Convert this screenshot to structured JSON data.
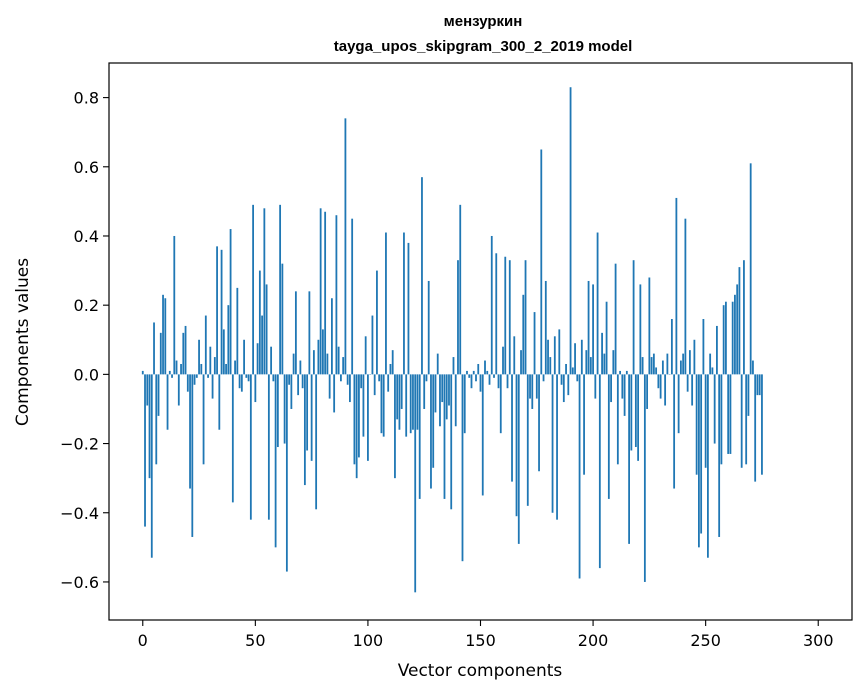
{
  "chart_data": {
    "type": "bar",
    "title": "мензуркин",
    "subtitle": "tayga_upos_skipgram_300_2_2019 model",
    "xlabel": "Vector components",
    "ylabel": "Components values",
    "xlim": [
      -15,
      315
    ],
    "ylim": [
      -0.71,
      0.9
    ],
    "xticks": [
      0,
      50,
      100,
      150,
      200,
      250,
      300
    ],
    "yticks": [
      -0.6,
      -0.4,
      -0.2,
      0.0,
      0.2,
      0.4,
      0.6,
      0.8
    ],
    "ytick_labels": [
      "−0.6",
      "−0.4",
      "−0.2",
      "0.0",
      "0.2",
      "0.4",
      "0.6",
      "0.8"
    ],
    "grid": false,
    "bar_color": "#1f77b4",
    "values": [
      0.01,
      -0.44,
      -0.09,
      -0.3,
      -0.53,
      0.15,
      -0.26,
      -0.12,
      0.12,
      0.23,
      0.22,
      -0.16,
      0.01,
      -0.01,
      0.4,
      0.04,
      -0.09,
      0.03,
      0.12,
      0.14,
      -0.05,
      -0.33,
      -0.47,
      -0.03,
      -0.01,
      0.1,
      0.03,
      -0.26,
      0.17,
      -0.01,
      0.08,
      -0.07,
      0.05,
      0.37,
      -0.16,
      0.36,
      0.13,
      0.03,
      0.2,
      0.42,
      -0.37,
      0.04,
      0.25,
      -0.04,
      -0.05,
      0.1,
      -0.01,
      -0.02,
      -0.42,
      0.49,
      -0.08,
      0.09,
      0.3,
      0.17,
      0.48,
      0.26,
      -0.42,
      0.08,
      -0.02,
      -0.5,
      -0.21,
      0.49,
      0.32,
      -0.2,
      -0.57,
      -0.03,
      -0.1,
      0.06,
      0.24,
      -0.06,
      0.04,
      -0.04,
      -0.32,
      -0.22,
      0.24,
      -0.25,
      0.07,
      -0.39,
      0.1,
      0.48,
      0.13,
      0.47,
      0.06,
      -0.07,
      0.22,
      -0.11,
      0.46,
      0.08,
      -0.02,
      0.05,
      0.74,
      -0.03,
      -0.08,
      0.45,
      -0.26,
      -0.3,
      -0.24,
      -0.04,
      -0.18,
      0.11,
      -0.25,
      0.0,
      0.17,
      -0.06,
      0.3,
      -0.02,
      -0.17,
      -0.18,
      0.41,
      -0.05,
      0.03,
      0.07,
      -0.3,
      -0.13,
      -0.16,
      -0.1,
      0.41,
      -0.18,
      0.38,
      -0.17,
      -0.16,
      -0.63,
      -0.16,
      -0.36,
      0.57,
      -0.1,
      -0.02,
      0.27,
      -0.33,
      -0.27,
      -0.11,
      0.06,
      -0.15,
      -0.08,
      -0.36,
      -0.13,
      -0.09,
      -0.39,
      0.05,
      -0.15,
      0.33,
      0.49,
      -0.54,
      -0.17,
      0.01,
      -0.01,
      -0.04,
      0.01,
      -0.02,
      0.03,
      -0.05,
      -0.35,
      0.04,
      0.01,
      -0.03,
      0.4,
      -0.01,
      0.35,
      -0.04,
      -0.17,
      0.08,
      0.34,
      -0.04,
      0.33,
      -0.31,
      0.11,
      -0.41,
      -0.49,
      0.07,
      0.23,
      0.33,
      -0.38,
      -0.07,
      -0.1,
      0.18,
      -0.07,
      -0.28,
      0.65,
      -0.02,
      0.27,
      0.1,
      0.05,
      -0.4,
      0.11,
      -0.42,
      0.13,
      -0.03,
      -0.08,
      0.03,
      -0.06,
      0.83,
      0.02,
      0.09,
      -0.02,
      -0.59,
      0.1,
      -0.29,
      0.07,
      0.27,
      0.05,
      0.26,
      -0.07,
      0.41,
      -0.56,
      0.12,
      0.06,
      0.21,
      -0.36,
      -0.08,
      0.07,
      0.32,
      -0.26,
      0.01,
      -0.07,
      -0.12,
      0.01,
      -0.49,
      -0.22,
      0.33,
      -0.21,
      -0.25,
      0.26,
      0.05,
      -0.6,
      -0.1,
      0.28,
      0.05,
      0.06,
      0.02,
      -0.04,
      -0.07,
      0.04,
      -0.09,
      0.06,
      0.0,
      0.16,
      -0.33,
      0.51,
      -0.17,
      0.04,
      0.06,
      0.45,
      -0.05,
      0.07,
      -0.09,
      0.1,
      -0.29,
      -0.5,
      -0.46,
      0.16,
      -0.27,
      -0.53,
      0.06,
      0.02,
      -0.2,
      0.14,
      -0.47,
      -0.26,
      0.2,
      0.21,
      -0.23,
      -0.23,
      0.21,
      0.23,
      0.26,
      0.31,
      -0.27,
      0.33,
      -0.26,
      -0.12,
      0.61,
      0.04,
      -0.31,
      -0.06,
      -0.06,
      -0.29
    ]
  }
}
